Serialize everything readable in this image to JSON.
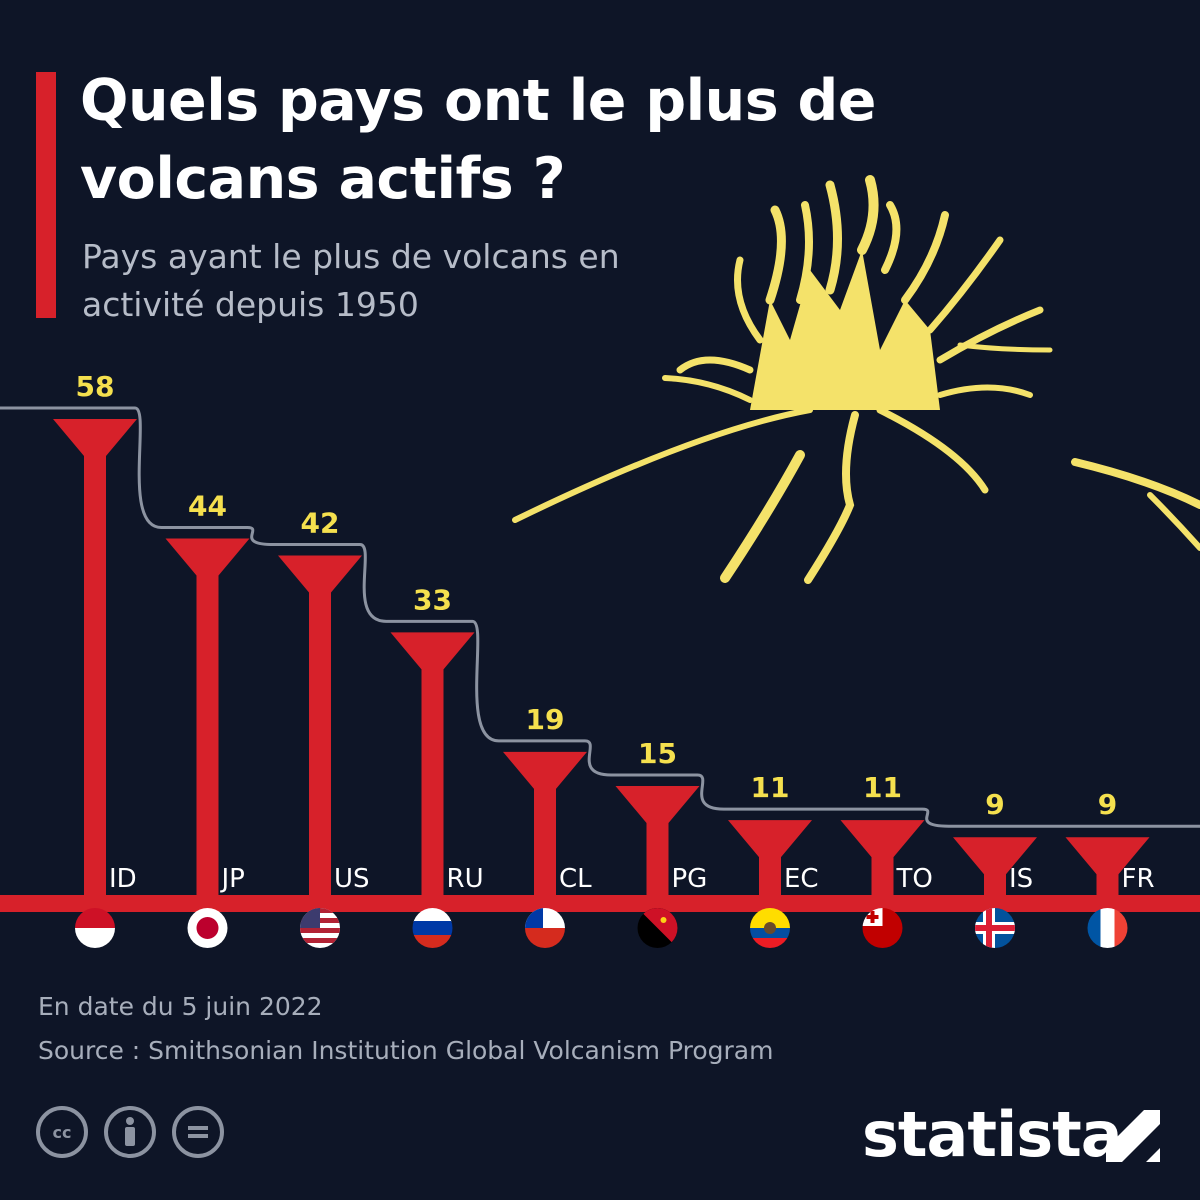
{
  "header": {
    "title": "Quels pays ont le plus de volcans actifs ?",
    "subtitle": "Pays ayant le plus de volcans en activité depuis 1950"
  },
  "colors": {
    "background": "#0e1527",
    "bar": "#d7212a",
    "value_label": "#f5e04e",
    "step_line": "#8c93a1",
    "volcano": "#f4e26a"
  },
  "chart_data": {
    "type": "bar",
    "categories": [
      "ID",
      "JP",
      "US",
      "RU",
      "CL",
      "PG",
      "EC",
      "TO",
      "IS",
      "FR"
    ],
    "values": [
      58,
      44,
      42,
      33,
      19,
      15,
      11,
      11,
      9,
      9
    ],
    "ylim": [
      0,
      62
    ],
    "grid": false,
    "legend": "none",
    "flags": [
      "Indonesia",
      "Japan",
      "United States",
      "Russia",
      "Chile",
      "Papua New Guinea",
      "Ecuador",
      "Tonga",
      "Iceland",
      "France"
    ]
  },
  "footer": {
    "date_note": "En date du 5 juin 2022",
    "source": "Source : Smithsonian Institution Global Volcanism Program",
    "brand": "statista"
  },
  "icons": [
    "cc-icon",
    "attribution-icon",
    "no-derivatives-icon",
    "statista-logo-icon"
  ]
}
